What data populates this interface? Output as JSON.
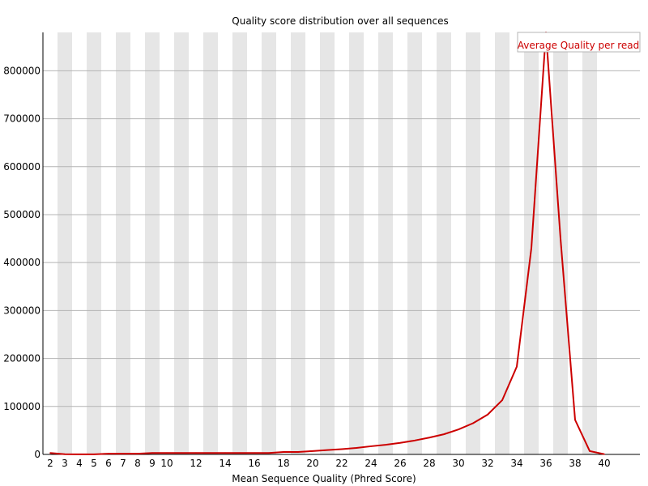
{
  "chart_data": {
    "type": "line",
    "title": "Quality score distribution over all sequences",
    "xlabel": "Mean Sequence Quality (Phred Score)",
    "ylabel": "",
    "xlim": [
      2,
      40
    ],
    "ylim": [
      0,
      880000
    ],
    "y_ticks": [
      0,
      100000,
      200000,
      300000,
      400000,
      500000,
      600000,
      700000,
      800000
    ],
    "x_tick_labels": [
      "2",
      "3",
      "4",
      "5",
      "6",
      "7",
      "8",
      "9",
      "10",
      "12",
      "14",
      "16",
      "18",
      "20",
      "22",
      "24",
      "26",
      "28",
      "30",
      "32",
      "34",
      "36",
      "38",
      "40"
    ],
    "x_tick_positions": [
      2,
      3,
      4,
      5,
      6,
      7,
      8,
      9,
      10,
      12,
      14,
      16,
      18,
      20,
      22,
      24,
      26,
      28,
      30,
      32,
      34,
      36,
      38,
      40
    ],
    "grid": true,
    "background_bands": "alternating grey/white per quality score",
    "legend": {
      "placement": "top-right"
    },
    "colors": {
      "line": "#cc0000",
      "band": "#e6e6e6",
      "grid": "#b4b4b4"
    },
    "series": [
      {
        "name": "Average Quality per read",
        "x": [
          2,
          3,
          4,
          5,
          6,
          7,
          8,
          9,
          10,
          11,
          12,
          13,
          14,
          15,
          16,
          17,
          18,
          19,
          20,
          21,
          22,
          23,
          24,
          25,
          26,
          27,
          28,
          29,
          30,
          31,
          32,
          33,
          34,
          35,
          36,
          37,
          38,
          39,
          40
        ],
        "values": [
          3000,
          500,
          300,
          300,
          1500,
          1500,
          1500,
          3000,
          3000,
          3000,
          3000,
          3000,
          3000,
          3000,
          3000,
          3000,
          5000,
          5000,
          7000,
          9000,
          11000,
          13500,
          17000,
          20000,
          24000,
          29000,
          35000,
          42000,
          52000,
          65000,
          83000,
          113000,
          183000,
          430000,
          880000,
          450000,
          72000,
          7000,
          500
        ]
      }
    ]
  }
}
